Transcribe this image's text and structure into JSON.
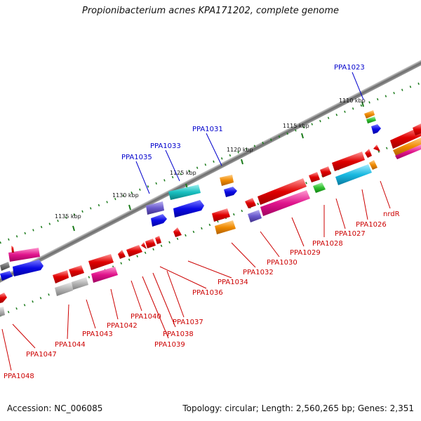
{
  "title": "Propionibacterium acnes KPA171202, complete genome",
  "footer": {
    "accession": "Accession: NC_006085",
    "summary": "Topology: circular; Length: 2,560,265 bp; Genes: 2,351"
  },
  "scale_labels": [
    "1110 kbp",
    "1115 kbp",
    "1120 kbp",
    "1125 kbp",
    "1130 kbp",
    "1135 kbp"
  ],
  "genes_top": [
    "PPA1023",
    "PPA1031",
    "PPA1033",
    "PPA1035"
  ],
  "genes_bottom": [
    "nrdR",
    "PPA1026",
    "PPA1027",
    "PPA1028",
    "PPA1029",
    "PPA1030",
    "PPA1032",
    "PPA1034",
    "PPA1036",
    "PPA1037",
    "PPA1038",
    "PPA1039",
    "PPA1040",
    "PPA1042",
    "PPA1043",
    "PPA1044",
    "PPA1047",
    "PPA1048"
  ],
  "colors": {
    "label_top": "#0000cc",
    "label_bottom": "#cc0000",
    "scale_tick": "#1a7a1a",
    "red": "#e00000",
    "pink": "#e0148c",
    "blue": "#0a0ae6",
    "cyan": "#18b8e0",
    "teal": "#18c0c0",
    "orange": "#f08a00",
    "green": "#30c030",
    "purple": "#6a5acd",
    "gray": "#b4b4b4",
    "darkgray": "#6e6e6e"
  }
}
